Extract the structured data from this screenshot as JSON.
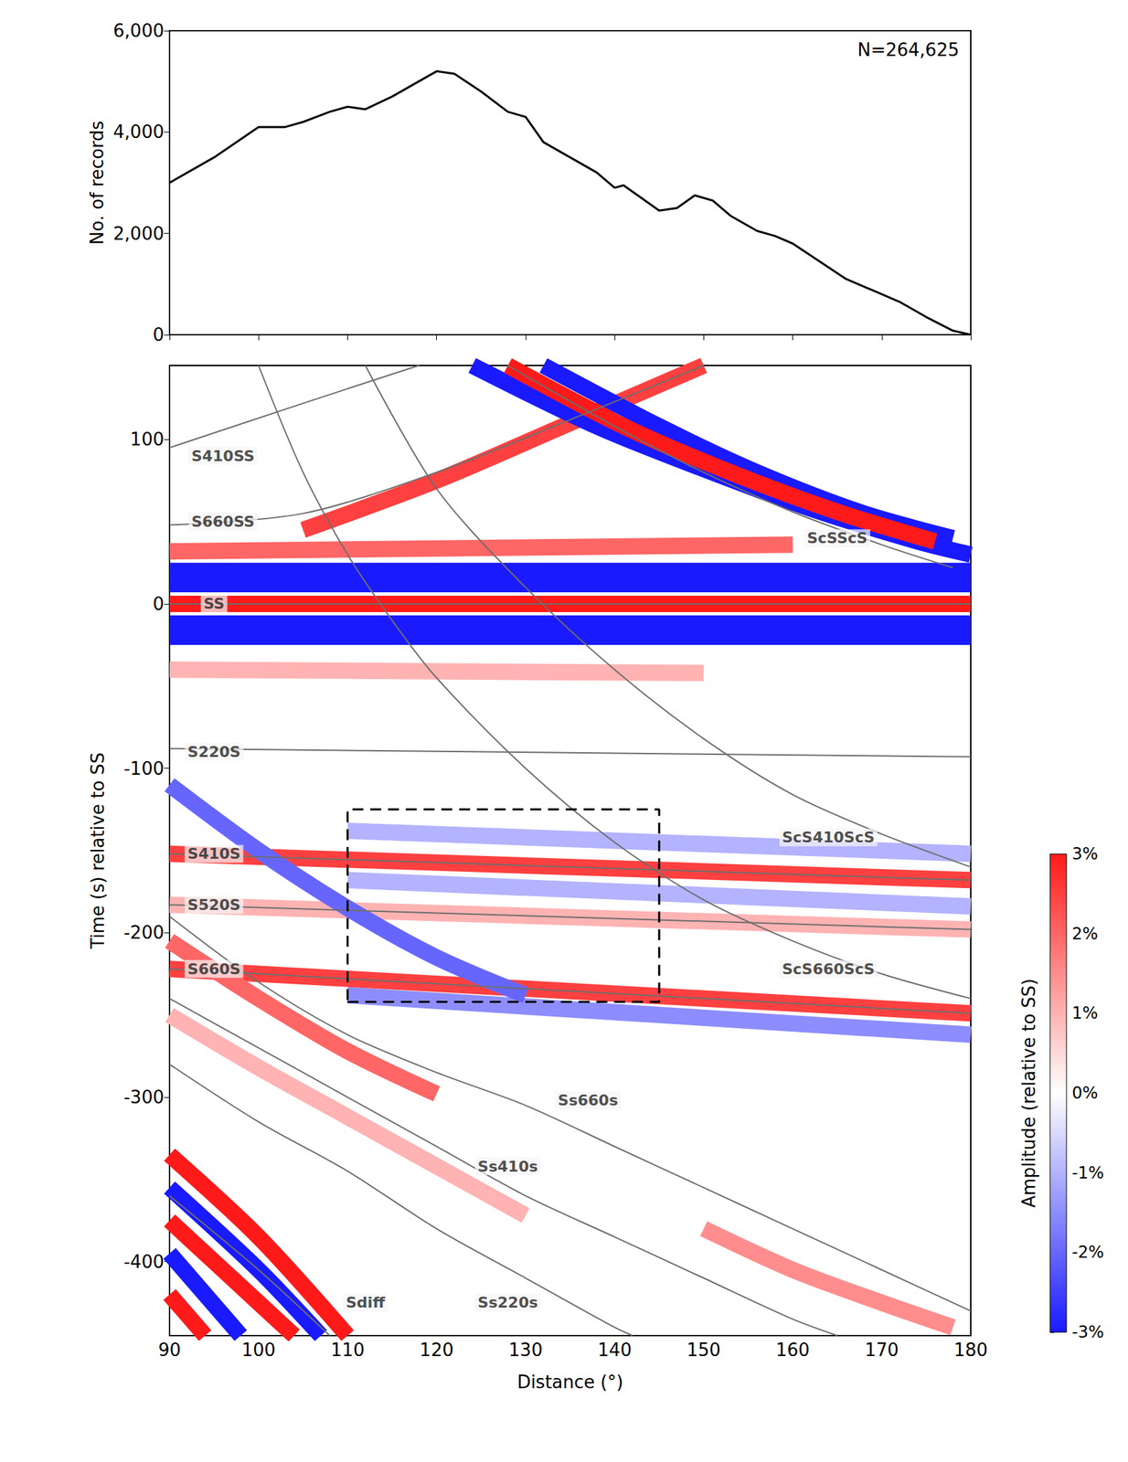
{
  "chart_data": [
    {
      "type": "line",
      "ylabel": "No. of records",
      "annotation": "N=264,625",
      "x": [
        90,
        95,
        100,
        103,
        105,
        108,
        110,
        112,
        115,
        118,
        120,
        122,
        125,
        128,
        130,
        132,
        135,
        138,
        140,
        141,
        143,
        145,
        147,
        149,
        151,
        153,
        156,
        158,
        160,
        163,
        166,
        170,
        172,
        175,
        178,
        180
      ],
      "values": [
        3000,
        3500,
        4100,
        4100,
        4200,
        4400,
        4500,
        4450,
        4700,
        5000,
        5200,
        5150,
        4800,
        4400,
        4300,
        3800,
        3500,
        3200,
        2900,
        2950,
        2700,
        2450,
        2500,
        2750,
        2650,
        2350,
        2050,
        1950,
        1800,
        1450,
        1100,
        800,
        650,
        350,
        80,
        0
      ],
      "color": "#000000",
      "xlim": [
        90,
        180
      ],
      "ylim": [
        0,
        6000
      ],
      "xticks": [
        90,
        100,
        110,
        120,
        130,
        140,
        150,
        160,
        170,
        180
      ],
      "yticks": [
        0,
        2000,
        4000,
        6000
      ],
      "tick_labels": "y"
    },
    {
      "type": "seismic_section",
      "xlabel": "Distance (°)",
      "ylabel": "Time (s) relative to SS",
      "xlim": [
        90,
        180
      ],
      "ylim": [
        -445,
        145
      ],
      "xticks": [
        90,
        100,
        110,
        120,
        130,
        140,
        150,
        160,
        170,
        180
      ],
      "yticks": [
        -400,
        -300,
        -200,
        -100,
        0,
        100
      ],
      "bands": [
        {
          "amplitude": -3,
          "points": [
            [
              90,
              12
            ],
            [
              180,
              12
            ]
          ]
        },
        {
          "amplitude": -3,
          "points": [
            [
              90,
              20
            ],
            [
              180,
              20
            ]
          ]
        },
        {
          "amplitude": -3,
          "points": [
            [
              90,
              -12
            ],
            [
              180,
              -12
            ]
          ]
        },
        {
          "amplitude": -3,
          "points": [
            [
              90,
              -20
            ],
            [
              180,
              -20
            ]
          ]
        },
        {
          "amplitude": 3,
          "points": [
            [
              90,
              0
            ],
            [
              180,
              0
            ]
          ]
        },
        {
          "amplitude": 2,
          "points": [
            [
              90,
              32
            ],
            [
              160,
              36
            ]
          ]
        },
        {
          "amplitude": 1,
          "points": [
            [
              90,
              -40
            ],
            [
              150,
              -42
            ]
          ]
        },
        {
          "amplitude": 2.5,
          "points": [
            [
              105,
              45
            ],
            [
              120,
              75
            ],
            [
              135,
              110
            ],
            [
              150,
              145
            ]
          ]
        },
        {
          "amplitude": -3,
          "points": [
            [
              124,
              145
            ],
            [
              138,
              108
            ],
            [
              150,
              82
            ],
            [
              162,
              58
            ],
            [
              174,
              38
            ],
            [
              180,
              30
            ]
          ]
        },
        {
          "amplitude": -3,
          "points": [
            [
              132,
              145
            ],
            [
              145,
              108
            ],
            [
              156,
              80
            ],
            [
              168,
              55
            ],
            [
              178,
              40
            ]
          ]
        },
        {
          "amplitude": 3,
          "points": [
            [
              128,
              145
            ],
            [
              141,
              108
            ],
            [
              153,
              80
            ],
            [
              165,
              56
            ],
            [
              176,
              38
            ]
          ]
        },
        {
          "amplitude": -1,
          "points": [
            [
              110,
              -138
            ],
            [
              180,
              -152
            ]
          ]
        },
        {
          "amplitude": 2.5,
          "points": [
            [
              90,
              -152
            ],
            [
              180,
              -168
            ]
          ]
        },
        {
          "amplitude": -1,
          "points": [
            [
              110,
              -168
            ],
            [
              180,
              -184
            ]
          ]
        },
        {
          "amplitude": 1,
          "points": [
            [
              90,
              -183
            ],
            [
              180,
              -198
            ]
          ]
        },
        {
          "amplitude": 2.5,
          "points": [
            [
              90,
              -222
            ],
            [
              180,
              -249
            ]
          ]
        },
        {
          "amplitude": -1.5,
          "points": [
            [
              110,
              -238
            ],
            [
              180,
              -262
            ]
          ]
        },
        {
          "amplitude": -2,
          "points": [
            [
              90,
              -110
            ],
            [
              100,
              -150
            ],
            [
              110,
              -185
            ],
            [
              120,
              -215
            ],
            [
              130,
              -238
            ]
          ]
        },
        {
          "amplitude": 2,
          "points": [
            [
              90,
              -205
            ],
            [
              100,
              -240
            ],
            [
              110,
              -272
            ],
            [
              120,
              -298
            ]
          ]
        },
        {
          "amplitude": 1,
          "points": [
            [
              90,
              -250
            ],
            [
              100,
              -282
            ],
            [
              110,
              -312
            ],
            [
              120,
              -342
            ],
            [
              130,
              -372
            ]
          ]
        },
        {
          "amplitude": 1.5,
          "points": [
            [
              150,
              -380
            ],
            [
              160,
              -405
            ],
            [
              170,
              -425
            ],
            [
              178,
              -440
            ]
          ]
        },
        {
          "amplitude": 3,
          "points": [
            [
              90,
              -335
            ],
            [
              100,
              -385
            ],
            [
              110,
              -445
            ]
          ]
        },
        {
          "amplitude": -3,
          "points": [
            [
              90,
              -355
            ],
            [
              100,
              -405
            ],
            [
              107,
              -445
            ]
          ]
        },
        {
          "amplitude": 3,
          "points": [
            [
              90,
              -375
            ],
            [
              100,
              -425
            ],
            [
              104,
              -445
            ]
          ]
        },
        {
          "amplitude": -3,
          "points": [
            [
              90,
              -395
            ],
            [
              98,
              -445
            ]
          ]
        },
        {
          "amplitude": 3,
          "points": [
            [
              90,
              -420
            ],
            [
              94,
              -445
            ]
          ]
        }
      ],
      "phases": [
        {
          "name": "SS",
          "points": [
            [
              90,
              0
            ],
            [
              180,
              0
            ]
          ],
          "label_at": [
            95,
            0
          ]
        },
        {
          "name": "S410SS",
          "points": [
            [
              90,
              95
            ],
            [
              105,
              122
            ],
            [
              118,
              145
            ]
          ],
          "label_at": [
            96,
            90
          ]
        },
        {
          "name": "S660SS",
          "points": [
            [
              90,
              48
            ],
            [
              105,
              55
            ],
            [
              120,
              80
            ],
            [
              135,
              112
            ],
            [
              150,
              145
            ]
          ],
          "label_at": [
            96,
            50
          ]
        },
        {
          "name": "ScSScS",
          "points": [
            [
              128,
              145
            ],
            [
              140,
              108
            ],
            [
              150,
              80
            ],
            [
              160,
              56
            ],
            [
              170,
              36
            ],
            [
              178,
              22
            ]
          ],
          "label_at": [
            165,
            40
          ]
        },
        {
          "name": "S220S",
          "points": [
            [
              90,
              -88
            ],
            [
              180,
              -93
            ]
          ],
          "label_at": [
            95,
            -90
          ]
        },
        {
          "name": "S410S",
          "points": [
            [
              90,
              -152
            ],
            [
              180,
              -168
            ]
          ],
          "label_at": [
            95,
            -152
          ]
        },
        {
          "name": "S520S",
          "points": [
            [
              90,
              -183
            ],
            [
              180,
              -198
            ]
          ],
          "label_at": [
            95,
            -183
          ]
        },
        {
          "name": "S660S",
          "points": [
            [
              90,
              -222
            ],
            [
              180,
              -249
            ]
          ],
          "label_at": [
            95,
            -222
          ]
        },
        {
          "name": "ScS410ScS",
          "points": [
            [
              112,
              145
            ],
            [
              120,
              70
            ],
            [
              130,
              10
            ],
            [
              140,
              -40
            ],
            [
              150,
              -82
            ],
            [
              160,
              -116
            ],
            [
              170,
              -140
            ],
            [
              180,
              -160
            ]
          ],
          "label_at": [
            164,
            -142
          ]
        },
        {
          "name": "ScS660ScS",
          "points": [
            [
              100,
              145
            ],
            [
              105,
              80
            ],
            [
              110,
              30
            ],
            [
              115,
              -10
            ],
            [
              120,
              -45
            ],
            [
              130,
              -100
            ],
            [
              140,
              -145
            ],
            [
              150,
              -180
            ],
            [
              160,
              -205
            ],
            [
              170,
              -225
            ],
            [
              180,
              -240
            ]
          ],
          "label_at": [
            164,
            -222
          ]
        },
        {
          "name": "Ss660s",
          "points": [
            [
              90,
              -190
            ],
            [
              100,
              -230
            ],
            [
              110,
              -262
            ],
            [
              120,
              -285
            ],
            [
              130,
              -305
            ],
            [
              140,
              -330
            ],
            [
              150,
              -355
            ],
            [
              160,
              -380
            ],
            [
              170,
              -405
            ],
            [
              180,
              -430
            ]
          ],
          "label_at": [
            137,
            -302
          ]
        },
        {
          "name": "Ss410s",
          "points": [
            [
              90,
              -240
            ],
            [
              100,
              -270
            ],
            [
              110,
              -300
            ],
            [
              120,
              -330
            ],
            [
              130,
              -360
            ],
            [
              140,
              -385
            ],
            [
              150,
              -410
            ],
            [
              160,
              -435
            ],
            [
              165,
              -445
            ]
          ],
          "label_at": [
            128,
            -342
          ]
        },
        {
          "name": "Ss220s",
          "points": [
            [
              90,
              -280
            ],
            [
              100,
              -315
            ],
            [
              110,
              -345
            ],
            [
              120,
              -380
            ],
            [
              130,
              -410
            ],
            [
              140,
              -440
            ],
            [
              142,
              -445
            ]
          ],
          "label_at": [
            128,
            -425
          ]
        },
        {
          "name": "Sdiff",
          "points": [
            [
              90,
              -360
            ],
            [
              100,
              -405
            ],
            [
              108,
              -445
            ]
          ],
          "label_at": [
            112,
            -425
          ]
        }
      ],
      "box": {
        "x": [
          110,
          145
        ],
        "y": [
          -242,
          -125
        ]
      },
      "colorbar": {
        "label": "Amplitude (relative to SS)",
        "range": [
          -3,
          3
        ],
        "ticks": [
          {
            "value": -3,
            "label": "-3%"
          },
          {
            "value": -2,
            "label": "-2%"
          },
          {
            "value": -1,
            "label": "-1%"
          },
          {
            "value": 0,
            "label": "0%"
          },
          {
            "value": 1,
            "label": "1%"
          },
          {
            "value": 2,
            "label": "2%"
          },
          {
            "value": 3,
            "label": "3%"
          }
        ],
        "colors": [
          "#1a1aff",
          "#ffffff",
          "#ff1a1a"
        ]
      }
    }
  ]
}
